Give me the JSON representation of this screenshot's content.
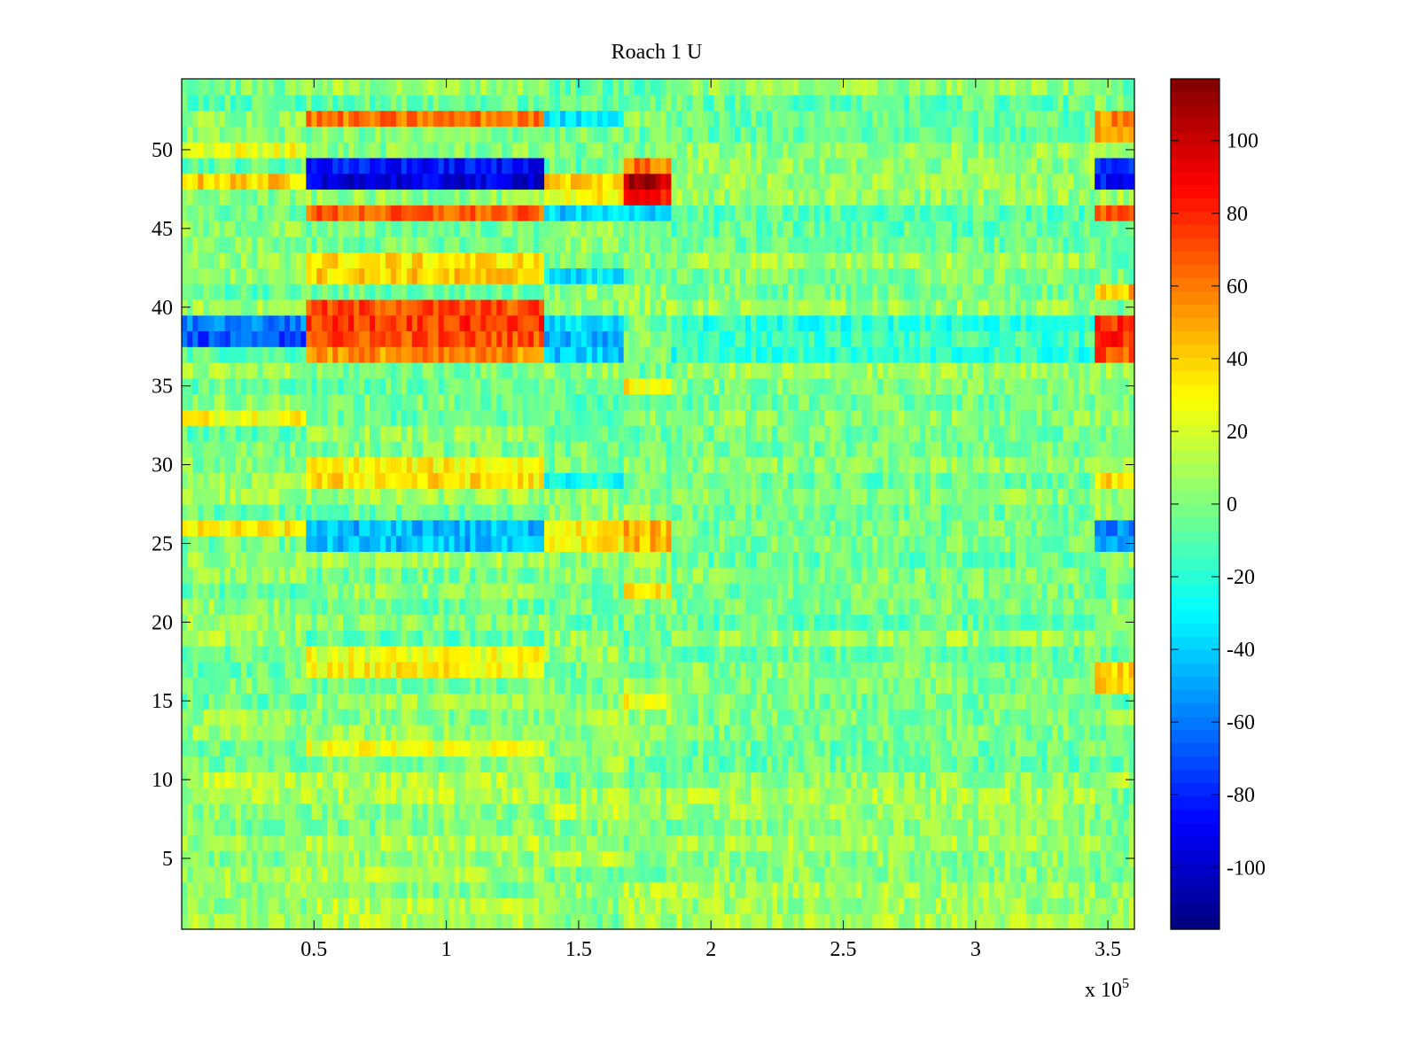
{
  "chart_data": {
    "type": "heatmap",
    "title": "Roach 1 U",
    "xlabel": "",
    "ylabel": "",
    "x_exponent_label": "x 10",
    "x_exponent_power": "5",
    "xlim": [
      0,
      3.6
    ],
    "ylim": [
      0.5,
      54.5
    ],
    "x_ticks": [
      0.5,
      1,
      1.5,
      2,
      2.5,
      3,
      3.5
    ],
    "x_tick_labels": [
      "0.5",
      "1",
      "1.5",
      "2",
      "2.5",
      "3",
      "3.5"
    ],
    "y_ticks": [
      5,
      10,
      15,
      20,
      25,
      30,
      35,
      40,
      45,
      50
    ],
    "y_tick_labels": [
      "5",
      "10",
      "15",
      "20",
      "25",
      "30",
      "35",
      "40",
      "45",
      "50"
    ],
    "colormap": "jet",
    "clim": [
      -117,
      117
    ],
    "colorbar_ticks": [
      100,
      80,
      60,
      40,
      20,
      0,
      -20,
      -40,
      -60,
      -80,
      -100
    ],
    "colorbar_tick_labels": [
      "100",
      "80",
      "60",
      "40",
      "20",
      "0",
      "-20",
      "-40",
      "-60",
      "-80",
      "-100"
    ],
    "rows": 54,
    "time_segments_x1e5": [
      [
        0.0,
        0.47
      ],
      [
        0.47,
        1.37
      ],
      [
        1.37,
        1.67
      ],
      [
        1.67,
        1.85
      ],
      [
        1.85,
        3.45
      ],
      [
        3.45,
        3.6
      ]
    ],
    "segment_row_means": {
      "seg_0_047": {
        "26": 30,
        "33": 30,
        "38": -70,
        "39": -60,
        "48": 40,
        "50": 25
      },
      "seg_047_137": {
        "12": 25,
        "17": 30,
        "18": 25,
        "25": -45,
        "26": -45,
        "29": 35,
        "30": 30,
        "37": 55,
        "38": 70,
        "39": 75,
        "40": 70,
        "42": 40,
        "43": 35,
        "46": 65,
        "48": -95,
        "49": -85,
        "52": 60
      },
      "seg_137_167": {
        "25": 30,
        "26": 30,
        "29": -25,
        "37": -40,
        "38": -45,
        "39": -35,
        "42": -35,
        "46": -40,
        "47": 30,
        "48": 40,
        "52": -35
      },
      "seg_167_185": {
        "15": 30,
        "22": 30,
        "25": 45,
        "26": 45,
        "35": 30,
        "46": -35,
        "47": 85,
        "48": 105,
        "49": 60
      },
      "seg_185_345": {
        "37": -20,
        "38": -15,
        "39": -20,
        "46": -10
      },
      "seg_345_360": {
        "16": 40,
        "17": 40,
        "25": -55,
        "26": -55,
        "29": 40,
        "37": 70,
        "38": 80,
        "39": 75,
        "41": 45,
        "46": 70,
        "48": -85,
        "49": -80,
        "51": 55,
        "52": 55
      }
    },
    "background_mean_low_rows": 5,
    "background_mean_high_rows": 0,
    "noise_amplitude": 14
  }
}
